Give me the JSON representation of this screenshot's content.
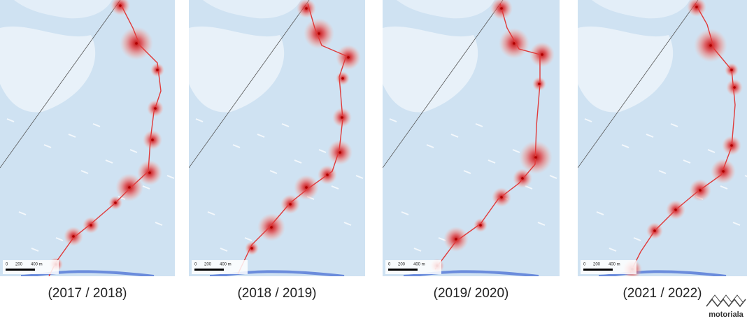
{
  "panels": [
    {
      "caption": "(2017 / 2018)",
      "scale": [
        "0",
        "200",
        "400 m"
      ]
    },
    {
      "caption": "(2018 / 2019)",
      "scale": [
        "0",
        "200",
        "400 m"
      ]
    },
    {
      "caption": "(2019/ 2020)",
      "scale": [
        "0",
        "200",
        "400 m"
      ]
    },
    {
      "caption": "(2021 / 2022)",
      "scale": [
        "0",
        "200",
        "400 m"
      ]
    }
  ],
  "logo": "motoriala"
}
